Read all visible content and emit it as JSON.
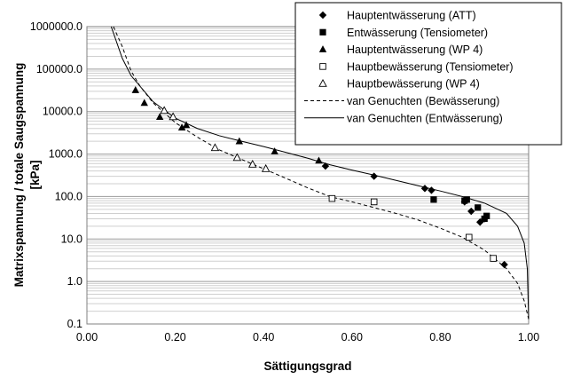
{
  "chart_data": {
    "type": "scatter",
    "xlabel": "Sättigungsgrad",
    "ylabel_lines": [
      "Matrixspannung / totale Saugspannung",
      "[kPa]"
    ],
    "xlim": [
      0,
      1.0
    ],
    "ylim": [
      0.1,
      1000000
    ],
    "yscale": "log",
    "xticks": [
      0,
      0.2,
      0.4,
      0.6,
      0.8,
      1.0
    ],
    "xtick_labels": [
      "0.00",
      "0.20",
      "0.40",
      "0.60",
      "0.80",
      "1.00"
    ],
    "yticks": [
      0.1,
      1,
      10,
      100,
      1000,
      10000,
      100000,
      1000000
    ],
    "ytick_labels": [
      "0.1",
      "1.0",
      "10.0",
      "100.0",
      "1000.0",
      "10000.0",
      "100000.0",
      "1000000.0"
    ],
    "grid": true,
    "legend_position": "top-right",
    "series": [
      {
        "name": "Hauptentwässerung (ATT)",
        "marker": "diamond-filled",
        "points": [
          [
            0.54,
            520
          ],
          [
            0.65,
            300
          ],
          [
            0.765,
            155
          ],
          [
            0.78,
            140
          ],
          [
            0.855,
            75
          ],
          [
            0.87,
            45
          ],
          [
            0.89,
            25
          ],
          [
            0.9,
            30
          ],
          [
            0.945,
            2.5
          ]
        ]
      },
      {
        "name": "Entwässerung (Tensiometer)",
        "marker": "square-filled",
        "points": [
          [
            0.785,
            85
          ],
          [
            0.855,
            80
          ],
          [
            0.86,
            85
          ],
          [
            0.885,
            55
          ],
          [
            0.905,
            35
          ],
          [
            0.9,
            30
          ]
        ]
      },
      {
        "name": "Hauptentwässerung (WP 4)",
        "marker": "triangle-filled",
        "points": [
          [
            0.11,
            32000
          ],
          [
            0.13,
            16000
          ],
          [
            0.165,
            7500
          ],
          [
            0.215,
            4200
          ],
          [
            0.225,
            4800
          ],
          [
            0.345,
            2000
          ],
          [
            0.425,
            1150
          ],
          [
            0.525,
            700
          ]
        ]
      },
      {
        "name": "Hauptbewässerung (Tensiometer)",
        "marker": "square-open",
        "points": [
          [
            0.555,
            90
          ],
          [
            0.65,
            75
          ],
          [
            0.865,
            11
          ],
          [
            0.92,
            3.5
          ]
        ]
      },
      {
        "name": "Hauptbewässerung (WP 4)",
        "marker": "triangle-open",
        "points": [
          [
            0.175,
            10500
          ],
          [
            0.195,
            7500
          ],
          [
            0.29,
            1400
          ],
          [
            0.34,
            820
          ],
          [
            0.375,
            570
          ],
          [
            0.405,
            450
          ]
        ]
      },
      {
        "name": "van Genuchten (Bewässerung)",
        "line": "dashed",
        "points": [
          [
            0.06,
            1000000
          ],
          [
            0.08,
            340000
          ],
          [
            0.1,
            90000
          ],
          [
            0.12,
            40000
          ],
          [
            0.15,
            16000
          ],
          [
            0.2,
            5500
          ],
          [
            0.25,
            2500
          ],
          [
            0.3,
            1250
          ],
          [
            0.35,
            750
          ],
          [
            0.4,
            450
          ],
          [
            0.45,
            270
          ],
          [
            0.5,
            160
          ],
          [
            0.55,
            100
          ],
          [
            0.6,
            75
          ],
          [
            0.65,
            55
          ],
          [
            0.7,
            40
          ],
          [
            0.75,
            28
          ],
          [
            0.8,
            18
          ],
          [
            0.85,
            11
          ],
          [
            0.9,
            5.5
          ],
          [
            0.95,
            2.0
          ],
          [
            0.975,
            0.9
          ],
          [
            0.99,
            0.35
          ],
          [
            1.0,
            0.13
          ]
        ]
      },
      {
        "name": "van Genuchten (Entwässerung)",
        "line": "solid",
        "points": [
          [
            0.055,
            1000000
          ],
          [
            0.08,
            180000
          ],
          [
            0.1,
            70000
          ],
          [
            0.15,
            17000
          ],
          [
            0.2,
            7000
          ],
          [
            0.25,
            4000
          ],
          [
            0.3,
            2700
          ],
          [
            0.35,
            2000
          ],
          [
            0.4,
            1500
          ],
          [
            0.45,
            1100
          ],
          [
            0.5,
            800
          ],
          [
            0.55,
            560
          ],
          [
            0.6,
            420
          ],
          [
            0.65,
            320
          ],
          [
            0.7,
            240
          ],
          [
            0.75,
            180
          ],
          [
            0.8,
            135
          ],
          [
            0.85,
            100
          ],
          [
            0.9,
            70
          ],
          [
            0.95,
            40
          ],
          [
            0.975,
            20
          ],
          [
            0.99,
            8
          ],
          [
            0.997,
            2
          ],
          [
            1.0,
            0.13
          ]
        ]
      }
    ]
  }
}
